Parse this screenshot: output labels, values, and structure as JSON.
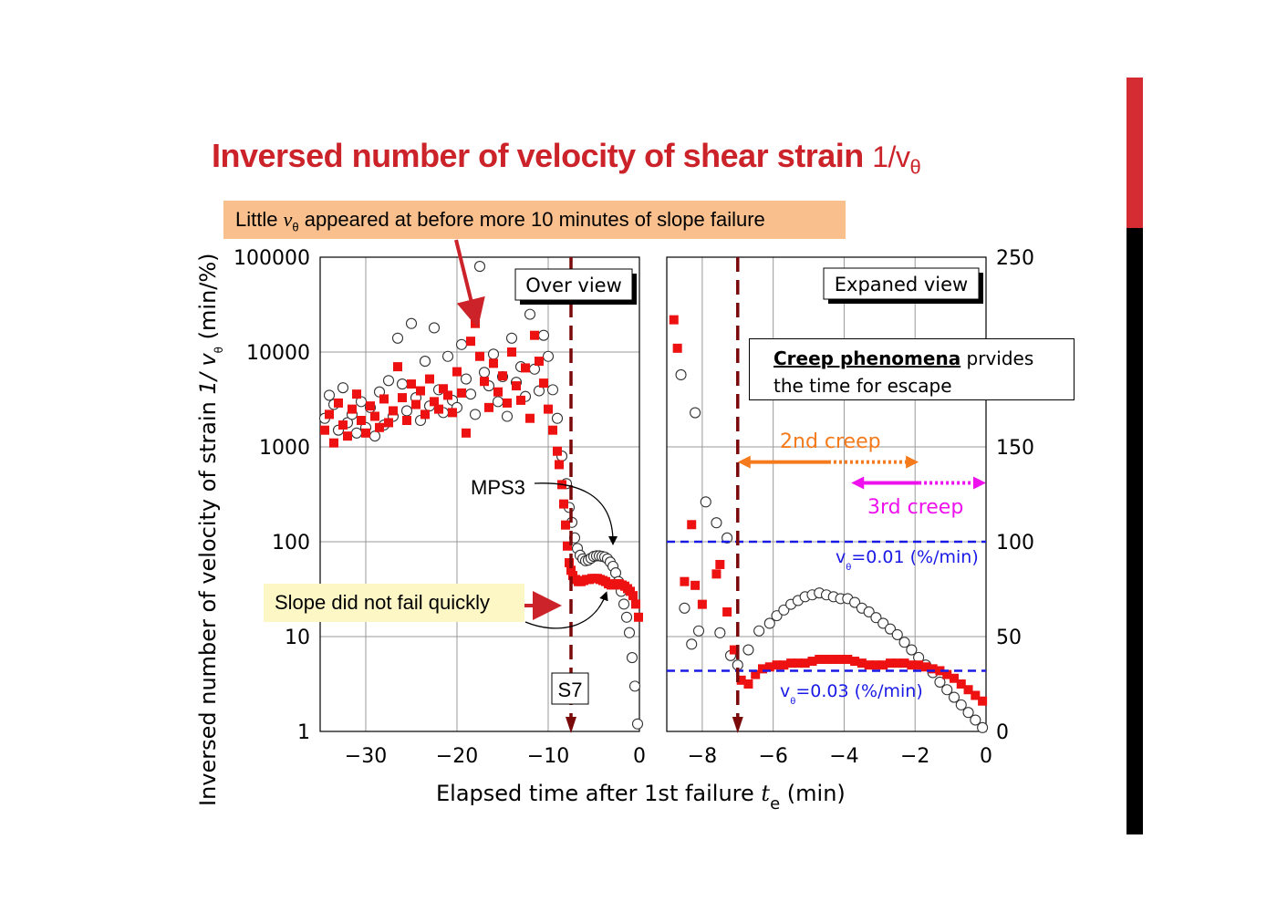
{
  "title": {
    "text": "Inversed number of velocity of shear strain",
    "symbol": "1/v",
    "symbol_sub": "θ"
  },
  "callouts": {
    "little_pre": "Little ",
    "little_v": "v",
    "little_sub": "θ",
    "little_post": " appeared at before more 10 minutes of slope failure",
    "slope": "Slope did not fail quickly",
    "creep_bold": "Creep phenomena",
    "creep_rest": " prvides",
    "creep_line2": "the time for escape"
  },
  "colors": {
    "title": "#cc2229",
    "series_red": "#ee1111",
    "dashed_line": "#7a0a0a",
    "blue_line": "#1a1ae6",
    "second_creep": "#f47a1c",
    "third_creep": "#ee11ee"
  },
  "chart_data": {
    "xlabel_text": "Elapsed time after 1st failure",
    "xlabel_symbol": "t",
    "xlabel_symbol_sub": "e",
    "xlabel_unit": "(min)",
    "ylabel_text": "Inversed number of velocity of strain",
    "ylabel_symbol": "1/ v",
    "ylabel_symbol_sub": "θ",
    "ylabel_unit": "(min/%)",
    "failure_line_x": -7.5,
    "left": {
      "type": "scatter",
      "panel_label": "Over view",
      "xlim": [
        -35,
        0
      ],
      "ylim_log": [
        1,
        100000
      ],
      "y_scale": "log",
      "x_ticks": [
        -30,
        -20,
        -10,
        0
      ],
      "x_tick_labels": [
        "−30",
        "−20",
        "−10",
        "0"
      ],
      "y_ticks": [
        1,
        10,
        100,
        1000,
        10000,
        100000
      ],
      "y_tick_labels": [
        "1",
        "10",
        "100",
        "1000",
        "10000",
        "100000"
      ],
      "annotation_mps3": "MPS3",
      "annotation_s7": "S7",
      "markers": [
        "open-circle",
        "red-square"
      ]
    },
    "right": {
      "type": "scatter",
      "panel_label": "Expaned view",
      "xlim": [
        -9,
        0
      ],
      "ylim": [
        0,
        250
      ],
      "x_ticks": [
        -8,
        -6,
        -4,
        -2,
        0
      ],
      "x_tick_labels": [
        "−8",
        "−6",
        "−4",
        "−2",
        "0"
      ],
      "y_ticks": [
        0,
        50,
        100,
        150,
        250
      ],
      "y_tick_labels": [
        "0",
        "50",
        "100",
        "150",
        "250"
      ],
      "ref_line_1": {
        "y": 100,
        "label_v": "v",
        "label_sub": "θ",
        "label": "=0.01 (%/min)"
      },
      "ref_line_2": {
        "y": 32,
        "label_v": "v",
        "label_sub": "θ",
        "label": "=0.03 (%/min)"
      },
      "second_creep": {
        "label": "2nd creep",
        "x_start": -7.0,
        "x_end": -1.9,
        "y": 142
      },
      "third_creep": {
        "label": "3rd creep",
        "x_start": -3.8,
        "x_end": 0,
        "y": 131
      }
    },
    "left_circles": [
      [
        -34.5,
        2000
      ],
      [
        -34,
        3500
      ],
      [
        -33.5,
        2800
      ],
      [
        -33,
        1500
      ],
      [
        -32.5,
        4200
      ],
      [
        -32,
        1800
      ],
      [
        -31.5,
        2200
      ],
      [
        -31,
        1400
      ],
      [
        -30.5,
        3000
      ],
      [
        -30,
        1600
      ],
      [
        -29.5,
        2600
      ],
      [
        -29,
        1300
      ],
      [
        -28.5,
        3800
      ],
      [
        -28,
        1700
      ],
      [
        -27.5,
        5000
      ],
      [
        -27,
        2100
      ],
      [
        -26.5,
        14000
      ],
      [
        -26,
        4600
      ],
      [
        -25.5,
        2400
      ],
      [
        -25,
        20000
      ],
      [
        -24.5,
        3300
      ],
      [
        -24,
        1900
      ],
      [
        -23.5,
        8000
      ],
      [
        -23,
        2700
      ],
      [
        -22.5,
        18000
      ],
      [
        -22,
        4000
      ],
      [
        -21.5,
        2300
      ],
      [
        -21,
        9000
      ],
      [
        -20.5,
        3100
      ],
      [
        -20,
        2600
      ],
      [
        -19.5,
        12000
      ],
      [
        -19,
        5200
      ],
      [
        -18.5,
        3600
      ],
      [
        -18,
        2200
      ],
      [
        -17.5,
        80000
      ],
      [
        -17,
        6100
      ],
      [
        -16.5,
        4400
      ],
      [
        -16,
        9500
      ],
      [
        -15.5,
        3000
      ],
      [
        -15,
        5500
      ],
      [
        -14.5,
        2100
      ],
      [
        -14,
        14000
      ],
      [
        -13.5,
        4800
      ],
      [
        -13,
        7000
      ],
      [
        -12.5,
        3400
      ],
      [
        -12,
        25000
      ],
      [
        -11.5,
        6600
      ],
      [
        -11,
        3900
      ],
      [
        -10.5,
        15000
      ],
      [
        -10,
        9000
      ],
      [
        -9.5,
        4000
      ],
      [
        -9,
        2000
      ],
      [
        -8.5,
        800
      ],
      [
        -8,
        410
      ],
      [
        -7.7,
        230
      ],
      [
        -7.4,
        160
      ],
      [
        -7.1,
        110
      ],
      [
        -6.8,
        85
      ],
      [
        -6.5,
        72
      ],
      [
        -6.2,
        66
      ],
      [
        -5.9,
        63
      ],
      [
        -5.6,
        64
      ],
      [
        -5.3,
        67
      ],
      [
        -5,
        70
      ],
      [
        -4.7,
        71
      ],
      [
        -4.4,
        71
      ],
      [
        -4.1,
        70
      ],
      [
        -3.8,
        69
      ],
      [
        -3.5,
        66
      ],
      [
        -3.2,
        61
      ],
      [
        -2.9,
        55
      ],
      [
        -2.6,
        47
      ],
      [
        -2.3,
        38
      ],
      [
        -2,
        30
      ],
      [
        -1.7,
        22
      ],
      [
        -1.4,
        16
      ],
      [
        -1.1,
        11
      ],
      [
        -0.8,
        6
      ],
      [
        -0.5,
        3
      ],
      [
        -0.2,
        1.2
      ]
    ],
    "left_squares": [
      [
        -34.5,
        1500
      ],
      [
        -34,
        2200
      ],
      [
        -33.5,
        1100
      ],
      [
        -33,
        2900
      ],
      [
        -32.5,
        1700
      ],
      [
        -32,
        1300
      ],
      [
        -31.5,
        2500
      ],
      [
        -31,
        3600
      ],
      [
        -30.5,
        1900
      ],
      [
        -30,
        1400
      ],
      [
        -29.5,
        2700
      ],
      [
        -29,
        2100
      ],
      [
        -28.5,
        1600
      ],
      [
        -28,
        3200
      ],
      [
        -27.5,
        1800
      ],
      [
        -27,
        2400
      ],
      [
        -26.5,
        7000
      ],
      [
        -26,
        3300
      ],
      [
        -25.5,
        1900
      ],
      [
        -25,
        4600
      ],
      [
        -24.5,
        2800
      ],
      [
        -24,
        3900
      ],
      [
        -23.5,
        2200
      ],
      [
        -23,
        5200
      ],
      [
        -22.5,
        3000
      ],
      [
        -22,
        2500
      ],
      [
        -21.5,
        4100
      ],
      [
        -21,
        3500
      ],
      [
        -20.5,
        2300
      ],
      [
        -20,
        6200
      ],
      [
        -19.5,
        3700
      ],
      [
        -19,
        1400
      ],
      [
        -18.5,
        13000
      ],
      [
        -18,
        20000
      ],
      [
        -17.5,
        9000
      ],
      [
        -17,
        4900
      ],
      [
        -16.5,
        2600
      ],
      [
        -16,
        7600
      ],
      [
        -15.5,
        3800
      ],
      [
        -15,
        5600
      ],
      [
        -14.5,
        2900
      ],
      [
        -14,
        10000
      ],
      [
        -13.5,
        4400
      ],
      [
        -13,
        3100
      ],
      [
        -12.5,
        6800
      ],
      [
        -12,
        2000
      ],
      [
        -11.5,
        15000
      ],
      [
        -11,
        8000
      ],
      [
        -10.5,
        4700
      ],
      [
        -10,
        2500
      ],
      [
        -9.5,
        1500
      ],
      [
        -9,
        900
      ],
      [
        -8.8,
        650
      ],
      [
        -8.5,
        400
      ],
      [
        -8.3,
        250
      ],
      [
        -8.1,
        150
      ],
      [
        -7.9,
        90
      ],
      [
        -7.7,
        60
      ],
      [
        -7.5,
        50
      ],
      [
        -7.3,
        44
      ],
      [
        -7,
        40
      ],
      [
        -6.7,
        38
      ],
      [
        -6.4,
        38
      ],
      [
        -6.1,
        39
      ],
      [
        -5.8,
        40
      ],
      [
        -5.5,
        40
      ],
      [
        -5.2,
        41
      ],
      [
        -4.9,
        41
      ],
      [
        -4.6,
        41
      ],
      [
        -4.3,
        40
      ],
      [
        -4,
        39
      ],
      [
        -3.7,
        38
      ],
      [
        -3.4,
        36
      ],
      [
        -3.1,
        35
      ],
      [
        -2.8,
        35
      ],
      [
        -2.5,
        36
      ],
      [
        -2.2,
        36
      ],
      [
        -1.9,
        35
      ],
      [
        -1.6,
        34
      ],
      [
        -1.3,
        32
      ],
      [
        -1,
        30
      ],
      [
        -0.7,
        27
      ],
      [
        -0.4,
        22
      ],
      [
        -0.1,
        16
      ]
    ],
    "right_circles": [
      [
        -8.6,
        188
      ],
      [
        -8.2,
        168
      ],
      [
        -7.9,
        121
      ],
      [
        -7.6,
        110
      ],
      [
        -7.3,
        102
      ],
      [
        -8.5,
        65
      ],
      [
        -8.3,
        46
      ],
      [
        -8.1,
        53
      ],
      [
        -7.5,
        52
      ],
      [
        -7.2,
        40
      ],
      [
        -7.0,
        35
      ],
      [
        -6.7,
        43
      ],
      [
        -6.4,
        53
      ],
      [
        -6.1,
        57
      ],
      [
        -5.9,
        61
      ],
      [
        -5.7,
        64
      ],
      [
        -5.5,
        67
      ],
      [
        -5.3,
        69
      ],
      [
        -5.1,
        71
      ],
      [
        -4.9,
        72
      ],
      [
        -4.7,
        73
      ],
      [
        -4.5,
        72
      ],
      [
        -4.3,
        71
      ],
      [
        -4.1,
        70
      ],
      [
        -3.9,
        70
      ],
      [
        -3.7,
        68
      ],
      [
        -3.5,
        65
      ],
      [
        -3.3,
        63
      ],
      [
        -3.1,
        60
      ],
      [
        -2.9,
        57
      ],
      [
        -2.7,
        54
      ],
      [
        -2.5,
        51
      ],
      [
        -2.3,
        47
      ],
      [
        -2.1,
        43
      ],
      [
        -1.9,
        39
      ],
      [
        -1.7,
        35
      ],
      [
        -1.5,
        31
      ],
      [
        -1.3,
        26
      ],
      [
        -1.1,
        22
      ],
      [
        -0.9,
        18
      ],
      [
        -0.7,
        14
      ],
      [
        -0.5,
        10
      ],
      [
        -0.3,
        6
      ],
      [
        -0.1,
        2
      ]
    ],
    "right_squares": [
      [
        -8.8,
        217
      ],
      [
        -8.7,
        202
      ],
      [
        -8.3,
        109
      ],
      [
        -8.5,
        79
      ],
      [
        -8.2,
        77
      ],
      [
        -8.0,
        67
      ],
      [
        -7.6,
        83
      ],
      [
        -7.5,
        88
      ],
      [
        -7.3,
        63
      ],
      [
        -7.1,
        43
      ],
      [
        -6.9,
        27
      ],
      [
        -6.7,
        25
      ],
      [
        -6.5,
        30
      ],
      [
        -6.3,
        33
      ],
      [
        -6.1,
        34
      ],
      [
        -5.9,
        35
      ],
      [
        -5.7,
        35
      ],
      [
        -5.5,
        36
      ],
      [
        -5.3,
        36
      ],
      [
        -5.1,
        36
      ],
      [
        -4.9,
        37
      ],
      [
        -4.7,
        38
      ],
      [
        -4.5,
        38
      ],
      [
        -4.3,
        38
      ],
      [
        -4.1,
        38
      ],
      [
        -3.9,
        38
      ],
      [
        -3.7,
        37
      ],
      [
        -3.5,
        36
      ],
      [
        -3.3,
        35
      ],
      [
        -3.1,
        35
      ],
      [
        -2.9,
        35
      ],
      [
        -2.7,
        36
      ],
      [
        -2.5,
        36
      ],
      [
        -2.3,
        36
      ],
      [
        -2.1,
        35
      ],
      [
        -1.9,
        35
      ],
      [
        -1.7,
        34
      ],
      [
        -1.5,
        33
      ],
      [
        -1.3,
        32
      ],
      [
        -1.1,
        30
      ],
      [
        -0.9,
        28
      ],
      [
        -0.7,
        25
      ],
      [
        -0.5,
        22
      ],
      [
        -0.3,
        19
      ],
      [
        -0.1,
        16
      ]
    ]
  }
}
